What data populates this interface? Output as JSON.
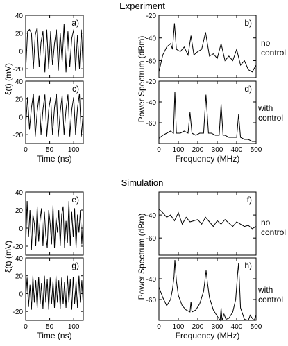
{
  "sections": [
    {
      "title": "Experiment"
    },
    {
      "title": "Simulation"
    }
  ],
  "side_labels": [
    [
      "no",
      "control"
    ],
    [
      "with",
      "control"
    ],
    [
      "no",
      "control"
    ],
    [
      "with",
      "control"
    ]
  ],
  "chart_data": [
    {
      "type": "line",
      "panel": "a)",
      "section": "Experiment",
      "regime": "no control",
      "xlabel": "",
      "ylabel": "ξ(t) (mV)",
      "xlim": [
        0,
        120
      ],
      "ylim": [
        -30,
        40
      ],
      "xticks": [
        0,
        50,
        100
      ],
      "yticks": [
        -20,
        0,
        20,
        40
      ],
      "series": [
        {
          "x": [
            0,
            4,
            8,
            12,
            16,
            20,
            24,
            28,
            32,
            36,
            40,
            44,
            48,
            52,
            56,
            60,
            64,
            68,
            72,
            76,
            80,
            84,
            88,
            92,
            96,
            100,
            104,
            108,
            112,
            116,
            120
          ],
          "y": [
            -22,
            22,
            24,
            20,
            -20,
            18,
            26,
            -18,
            10,
            22,
            -24,
            24,
            -20,
            22,
            -16,
            8,
            24,
            -22,
            20,
            -12,
            30,
            -24,
            22,
            -18,
            14,
            24,
            -22,
            18,
            -20,
            24,
            -22
          ]
        }
      ]
    },
    {
      "type": "line",
      "panel": "b)",
      "section": "Experiment",
      "regime": "no control",
      "xlabel": "",
      "ylabel": "Power Spectrum (dBm)",
      "xlim": [
        0,
        500
      ],
      "ylim": [
        -75,
        -20
      ],
      "xticks": [
        0,
        100,
        200,
        300,
        400,
        500
      ],
      "yticks": [
        -20,
        -40,
        -60
      ],
      "series": [
        {
          "x": [
            0,
            20,
            40,
            60,
            70,
            80,
            90,
            110,
            130,
            150,
            165,
            180,
            200,
            220,
            240,
            260,
            280,
            300,
            320,
            340,
            360,
            380,
            400,
            420,
            440,
            460,
            480,
            500
          ],
          "y": [
            -70,
            -55,
            -48,
            -45,
            -50,
            -27,
            -50,
            -52,
            -48,
            -55,
            -38,
            -55,
            -52,
            -50,
            -35,
            -56,
            -54,
            -58,
            -45,
            -60,
            -56,
            -60,
            -50,
            -64,
            -60,
            -68,
            -70,
            -64
          ]
        }
      ]
    },
    {
      "type": "line",
      "panel": "c)",
      "section": "Experiment",
      "regime": "with control",
      "xlabel": "Time (ns)",
      "ylabel": "",
      "xlim": [
        0,
        120
      ],
      "ylim": [
        -30,
        40
      ],
      "xticks": [
        0,
        50,
        100
      ],
      "yticks": [
        -20,
        0,
        20,
        40
      ],
      "series": [
        {
          "x": [
            0,
            4,
            8,
            12,
            16,
            20,
            24,
            28,
            32,
            36,
            40,
            44,
            48,
            52,
            56,
            60,
            64,
            68,
            72,
            76,
            80,
            84,
            88,
            92,
            96,
            100,
            104,
            108,
            112,
            116,
            120
          ],
          "y": [
            -10,
            22,
            -14,
            10,
            26,
            -22,
            6,
            24,
            -20,
            8,
            25,
            -22,
            8,
            22,
            -20,
            10,
            26,
            -22,
            6,
            24,
            -20,
            8,
            25,
            -22,
            8,
            22,
            -20,
            10,
            26,
            -22,
            6
          ]
        }
      ]
    },
    {
      "type": "line",
      "panel": "d)",
      "section": "Experiment",
      "regime": "with control",
      "xlabel": "Frequency (MHz)",
      "ylabel": "",
      "xlim": [
        0,
        500
      ],
      "ylim": [
        -80,
        -20
      ],
      "xticks": [
        0,
        100,
        200,
        300,
        400,
        500
      ],
      "yticks": [
        -20,
        -40,
        -60
      ],
      "series": [
        {
          "x": [
            0,
            20,
            40,
            60,
            75,
            82,
            90,
            110,
            130,
            150,
            160,
            170,
            190,
            210,
            230,
            242,
            255,
            270,
            290,
            310,
            320,
            330,
            340,
            360,
            380,
            400,
            410,
            420,
            440,
            460,
            480,
            500
          ],
          "y": [
            -75,
            -72,
            -70,
            -68,
            -70,
            -30,
            -70,
            -70,
            -68,
            -70,
            -50,
            -70,
            -72,
            -70,
            -70,
            -33,
            -70,
            -70,
            -72,
            -72,
            -42,
            -72,
            -72,
            -74,
            -74,
            -74,
            -52,
            -74,
            -76,
            -76,
            -78,
            -78
          ]
        }
      ]
    },
    {
      "type": "line",
      "panel": "e)",
      "section": "Simulation",
      "regime": "no control",
      "xlabel": "",
      "ylabel": "ξ(t) (mV)",
      "xlim": [
        0,
        120
      ],
      "ylim": [
        -30,
        40
      ],
      "xticks": [
        0,
        50,
        100
      ],
      "yticks": [
        -20,
        0,
        20,
        40
      ],
      "series": [
        {
          "x": [
            0,
            3,
            6,
            9,
            12,
            15,
            18,
            21,
            24,
            27,
            30,
            33,
            36,
            39,
            42,
            45,
            48,
            51,
            54,
            57,
            60,
            63,
            66,
            69,
            72,
            75,
            78,
            81,
            84,
            87,
            90,
            93,
            96,
            99,
            102,
            105,
            108,
            111,
            114,
            117,
            120
          ],
          "y": [
            -20,
            30,
            -10,
            20,
            -24,
            15,
            5,
            -20,
            24,
            -15,
            10,
            22,
            -20,
            18,
            -8,
            -22,
            20,
            5,
            -18,
            25,
            -22,
            12,
            -5,
            20,
            -20,
            15,
            24,
            -22,
            8,
            -16,
            30,
            -20,
            18,
            -10,
            22,
            -22,
            15,
            -5,
            20,
            -18,
            12
          ]
        }
      ]
    },
    {
      "type": "line",
      "panel": "f)",
      "section": "Simulation",
      "regime": "no control",
      "xlabel": "",
      "ylabel": "Power Spectrum (dBm)",
      "xlim": [
        0,
        500
      ],
      "ylim": [
        -75,
        -20
      ],
      "xticks": [
        0,
        100,
        200,
        300,
        400,
        500
      ],
      "yticks": [
        -40,
        -60
      ],
      "series": [
        {
          "x": [
            0,
            20,
            40,
            60,
            80,
            100,
            120,
            140,
            160,
            180,
            200,
            220,
            240,
            260,
            280,
            300,
            320,
            340,
            360,
            380,
            400,
            420,
            440,
            460,
            480,
            500
          ],
          "y": [
            -35,
            -38,
            -42,
            -40,
            -45,
            -38,
            -48,
            -42,
            -46,
            -45,
            -44,
            -48,
            -42,
            -46,
            -50,
            -45,
            -48,
            -44,
            -47,
            -50,
            -46,
            -48,
            -50,
            -49,
            -52,
            -50
          ]
        }
      ]
    },
    {
      "type": "line",
      "panel": "g)",
      "section": "Simulation",
      "regime": "with control",
      "xlabel": "Time (ns)",
      "ylabel": "",
      "xlim": [
        0,
        120
      ],
      "ylim": [
        -30,
        40
      ],
      "xticks": [
        0,
        50,
        100
      ],
      "yticks": [
        -20,
        0,
        20,
        40
      ],
      "series": [
        {
          "x": [
            0,
            3,
            6,
            9,
            12,
            15,
            18,
            21,
            24,
            27,
            30,
            33,
            36,
            39,
            42,
            45,
            48,
            51,
            54,
            57,
            60,
            63,
            66,
            69,
            72,
            75,
            78,
            81,
            84,
            87,
            90,
            93,
            96,
            99,
            102,
            105,
            108,
            111,
            114,
            117,
            120
          ],
          "y": [
            -5,
            18,
            -15,
            10,
            -18,
            20,
            -10,
            15,
            -16,
            19,
            -12,
            12,
            -17,
            20,
            -10,
            16,
            -18,
            18,
            -12,
            14,
            -16,
            20,
            -10,
            15,
            -17,
            18,
            -12,
            13,
            -16,
            20,
            -10,
            16,
            -18,
            19,
            -12,
            14,
            -16,
            20,
            -10,
            15,
            -15
          ]
        }
      ]
    },
    {
      "type": "line",
      "panel": "h)",
      "section": "Simulation",
      "regime": "with control",
      "xlabel": "Frequency (MHz)",
      "ylabel": "",
      "xlim": [
        0,
        500
      ],
      "ylim": [
        -80,
        -20
      ],
      "xticks": [
        0,
        100,
        200,
        300,
        400,
        500
      ],
      "yticks": [
        -40,
        -60
      ],
      "series": [
        {
          "x": [
            0,
            20,
            40,
            60,
            70,
            78,
            82,
            90,
            100,
            120,
            140,
            160,
            165,
            170,
            190,
            210,
            230,
            238,
            243,
            250,
            260,
            280,
            300,
            315,
            320,
            325,
            335,
            345,
            360,
            380,
            395,
            405,
            410,
            420,
            440,
            460,
            470,
            480,
            490,
            500
          ],
          "y": [
            -48,
            -58,
            -66,
            -60,
            -50,
            -38,
            -22,
            -42,
            -56,
            -66,
            -70,
            -72,
            -62,
            -72,
            -70,
            -64,
            -52,
            -40,
            -32,
            -44,
            -58,
            -70,
            -76,
            -80,
            -68,
            -80,
            -74,
            -79,
            -78,
            -72,
            -60,
            -35,
            -25,
            -68,
            -79,
            -80,
            -75,
            -78,
            -80,
            -75
          ]
        }
      ]
    }
  ]
}
